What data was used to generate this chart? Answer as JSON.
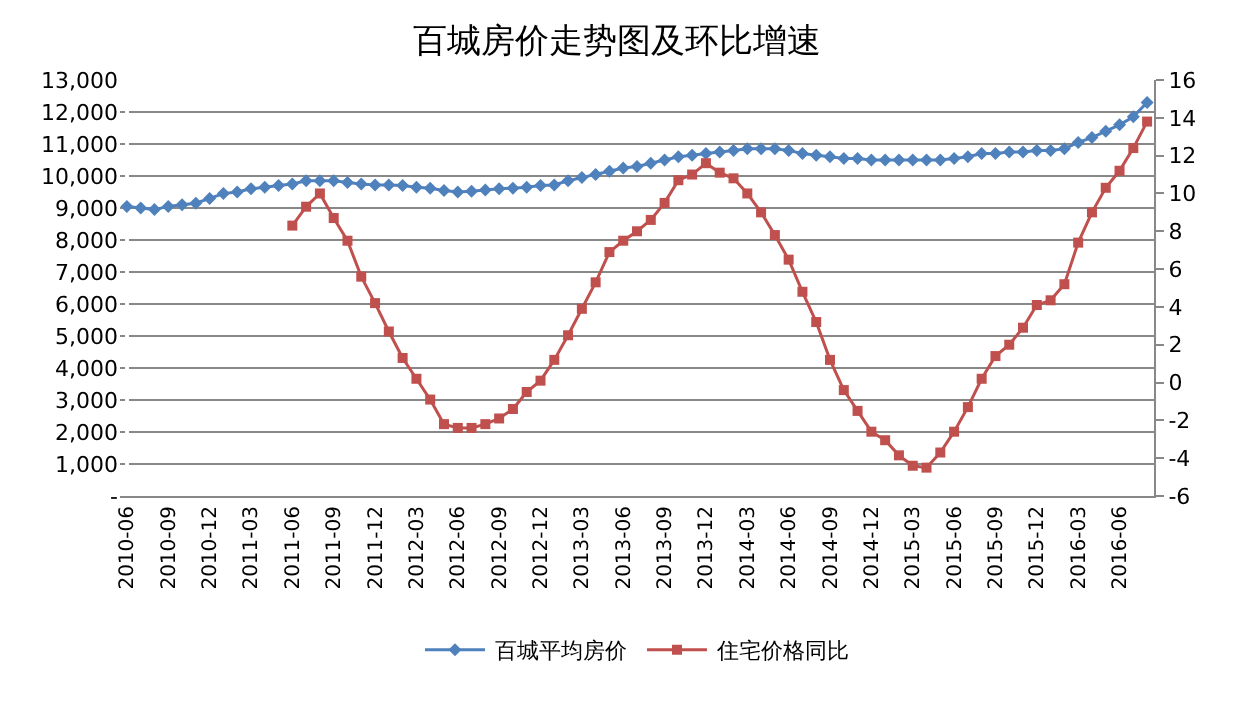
{
  "chart_data": {
    "type": "line",
    "title": "百城房价走势图及环比增速",
    "categories": [
      "2010-06",
      null,
      null,
      "2010-09",
      null,
      null,
      "2010-12",
      null,
      null,
      "2011-03",
      null,
      null,
      "2011-06",
      null,
      null,
      "2011-09",
      null,
      null,
      "2011-12",
      null,
      null,
      "2012-03",
      null,
      null,
      "2012-06",
      null,
      null,
      "2012-09",
      null,
      null,
      "2012-12",
      null,
      null,
      "2013-03",
      null,
      null,
      "2013-06",
      null,
      null,
      "2013-09",
      null,
      null,
      "2013-12",
      null,
      null,
      "2014-03",
      null,
      null,
      "2014-06",
      null,
      null,
      "2014-09",
      null,
      null,
      "2014-12",
      null,
      null,
      "2015-03",
      null,
      null,
      "2015-06",
      null,
      null,
      "2015-09",
      null,
      null,
      "2015-12",
      null,
      null,
      "2016-03",
      null,
      null,
      "2016-06",
      null,
      null
    ],
    "series": [
      {
        "name": "百城平均房价",
        "color": "#4f81bd",
        "marker": "diamond",
        "values": [
          9050,
          9000,
          8950,
          9050,
          9100,
          9150,
          9300,
          9450,
          9500,
          9600,
          9650,
          9700,
          9750,
          9850,
          9850,
          9850,
          9800,
          9750,
          9720,
          9720,
          9700,
          9650,
          9620,
          9550,
          9500,
          9520,
          9560,
          9600,
          9620,
          9650,
          9700,
          9720,
          9850,
          9950,
          10050,
          10150,
          10250,
          10300,
          10400,
          10500,
          10600,
          10650,
          10700,
          10750,
          10800,
          10850,
          10850,
          10850,
          10800,
          10700,
          10650,
          10600,
          10550,
          10550,
          10500,
          10500,
          10500,
          10500,
          10500,
          10500,
          10550,
          10600,
          10700,
          10700,
          10750,
          10750,
          10800,
          10800,
          10850,
          11050,
          11200,
          11400,
          11600,
          11850,
          12300
        ]
      },
      {
        "name": "住宅价格同比",
        "color": "#c0504d",
        "marker": "square",
        "axis": "y2",
        "values": [
          null,
          null,
          null,
          null,
          null,
          null,
          null,
          null,
          null,
          null,
          null,
          null,
          8.3,
          9.3,
          10.0,
          8.7,
          7.5,
          5.6,
          4.2,
          2.7,
          1.3,
          0.2,
          -0.9,
          -2.2,
          -2.4,
          -2.4,
          -2.2,
          -1.9,
          -1.4,
          -0.5,
          0.1,
          1.2,
          2.5,
          3.9,
          5.3,
          6.9,
          7.5,
          8.0,
          8.6,
          9.5,
          10.7,
          11.0,
          11.6,
          11.1,
          10.8,
          10.0,
          9.0,
          7.8,
          6.5,
          4.8,
          3.2,
          1.2,
          -0.4,
          -1.5,
          -2.6,
          -3.05,
          -3.85,
          -4.4,
          -4.5,
          -3.7,
          -2.6,
          -1.3,
          0.2,
          1.4,
          2.0,
          2.9,
          4.1,
          4.35,
          5.2,
          7.4,
          9.0,
          10.3,
          11.2,
          12.4,
          13.8
        ]
      }
    ],
    "ylim": [
      0,
      13000
    ],
    "yticks": [
      {
        "value": 0,
        "label": "-"
      },
      {
        "value": 1000,
        "label": "1,000"
      },
      {
        "value": 2000,
        "label": "2,000"
      },
      {
        "value": 3000,
        "label": "3,000"
      },
      {
        "value": 4000,
        "label": "4,000"
      },
      {
        "value": 5000,
        "label": "5,000"
      },
      {
        "value": 6000,
        "label": "6,000"
      },
      {
        "value": 7000,
        "label": "7,000"
      },
      {
        "value": 8000,
        "label": "8,000"
      },
      {
        "value": 9000,
        "label": "9,000"
      },
      {
        "value": 10000,
        "label": "10,000"
      },
      {
        "value": 11000,
        "label": "11,000"
      },
      {
        "value": 12000,
        "label": "12,000"
      },
      {
        "value": 13000,
        "label": "13,000"
      }
    ],
    "y2lim": [
      -6,
      16
    ],
    "y2ticks": [
      -6,
      -4,
      -2,
      0,
      2,
      4,
      6,
      8,
      10,
      12,
      14,
      16
    ],
    "grid": "y",
    "legend": "bottom",
    "line_style": "solid"
  }
}
